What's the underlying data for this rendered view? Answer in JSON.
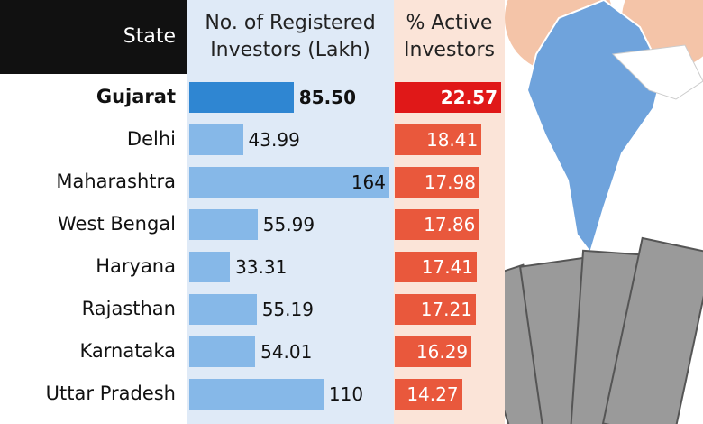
{
  "chart_data": {
    "type": "bar",
    "category_header": "State",
    "categories": [
      "Gujarat",
      "Delhi",
      "Maharashtra",
      "West Bengal",
      "Haryana",
      "Rajasthan",
      "Karnataka",
      "Uttar Pradesh"
    ],
    "series": [
      {
        "name": "No. of Registered Investors (Lakh)",
        "color": "#86b8e8",
        "colors": [
          "#2f86d2",
          "#86b8e8",
          "#86b8e8",
          "#86b8e8",
          "#86b8e8",
          "#86b8e8",
          "#86b8e8",
          "#86b8e8"
        ],
        "values": [
          85.5,
          43.99,
          164,
          55.99,
          33.31,
          55.19,
          54.01,
          110
        ],
        "value_labels": [
          "85.50",
          "43.99",
          "164",
          "55.99",
          "33.31",
          "55.19",
          "54.01",
          "110"
        ]
      },
      {
        "name": "% Active Investors",
        "color": "#e9583c",
        "colors": [
          "#e01818",
          "#e9583c",
          "#e9583c",
          "#e9583c",
          "#e9583c",
          "#e9583c",
          "#e9583c",
          "#e9583c"
        ],
        "values": [
          22.57,
          18.41,
          17.98,
          17.86,
          17.41,
          17.21,
          16.29,
          14.27
        ]
      }
    ]
  }
}
